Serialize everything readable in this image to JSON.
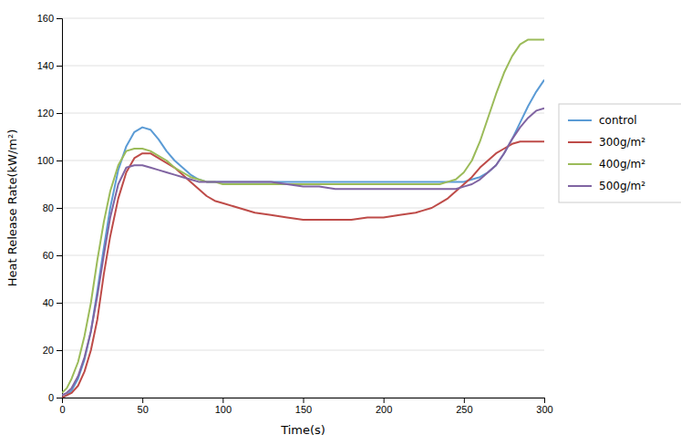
{
  "chart_data": {
    "type": "line",
    "xlabel": "Time(s)",
    "ylabel": "Heat Release Rate(kW/m²)",
    "xlim": [
      0,
      300
    ],
    "ylim": [
      0,
      160
    ],
    "xticks": [
      0,
      50,
      100,
      150,
      200,
      250,
      300
    ],
    "yticks": [
      0,
      20,
      40,
      60,
      80,
      100,
      120,
      140,
      160
    ],
    "grid": "y",
    "legend": "right",
    "x": [
      0,
      3,
      6,
      10,
      14,
      18,
      22,
      26,
      30,
      35,
      40,
      45,
      50,
      55,
      60,
      65,
      70,
      75,
      80,
      85,
      90,
      95,
      100,
      110,
      120,
      130,
      140,
      150,
      160,
      170,
      180,
      190,
      200,
      210,
      220,
      225,
      230,
      235,
      240,
      245,
      250,
      255,
      260,
      265,
      270,
      275,
      280,
      285,
      290,
      295,
      300
    ],
    "series": [
      {
        "name": "control",
        "color": "#5b9bd5",
        "values": [
          0,
          1,
          3,
          8,
          16,
          28,
          45,
          63,
          80,
          96,
          106,
          112,
          114,
          113,
          109,
          104,
          100,
          97,
          94,
          92,
          91,
          91,
          91,
          91,
          91,
          91,
          91,
          91,
          91,
          91,
          91,
          91,
          91,
          91,
          91,
          91,
          91,
          91,
          91,
          91,
          91,
          92,
          93,
          95,
          98,
          103,
          109,
          116,
          123,
          129,
          134
        ]
      },
      {
        "name": "300g/m²",
        "color": "#be4b48",
        "values": [
          0,
          1,
          2,
          5,
          11,
          20,
          33,
          52,
          68,
          84,
          95,
          101,
          103,
          103,
          101,
          99,
          97,
          94,
          91,
          88,
          85,
          83,
          82,
          80,
          78,
          77,
          76,
          75,
          75,
          75,
          75,
          76,
          76,
          77,
          78,
          79,
          80,
          82,
          84,
          87,
          90,
          93,
          97,
          100,
          103,
          105,
          107,
          108,
          108,
          108,
          108
        ]
      },
      {
        "name": "400g/m²",
        "color": "#9bbb59",
        "values": [
          2,
          4,
          8,
          15,
          26,
          40,
          58,
          74,
          87,
          98,
          104,
          105,
          105,
          104,
          102,
          100,
          97,
          95,
          93,
          92,
          91,
          91,
          90,
          90,
          90,
          90,
          90,
          90,
          90,
          90,
          90,
          90,
          90,
          90,
          90,
          90,
          90,
          90,
          91,
          92,
          95,
          100,
          108,
          118,
          128,
          137,
          144,
          149,
          151,
          151,
          151
        ]
      },
      {
        "name": "500g/m²",
        "color": "#8064a2",
        "values": [
          1,
          2,
          4,
          9,
          17,
          28,
          43,
          60,
          76,
          90,
          97,
          98,
          98,
          97,
          96,
          95,
          94,
          93,
          92,
          91,
          91,
          91,
          91,
          91,
          91,
          91,
          90,
          89,
          89,
          88,
          88,
          88,
          88,
          88,
          88,
          88,
          88,
          88,
          88,
          88,
          89,
          90,
          92,
          95,
          98,
          103,
          109,
          114,
          118,
          121,
          122
        ]
      }
    ]
  }
}
